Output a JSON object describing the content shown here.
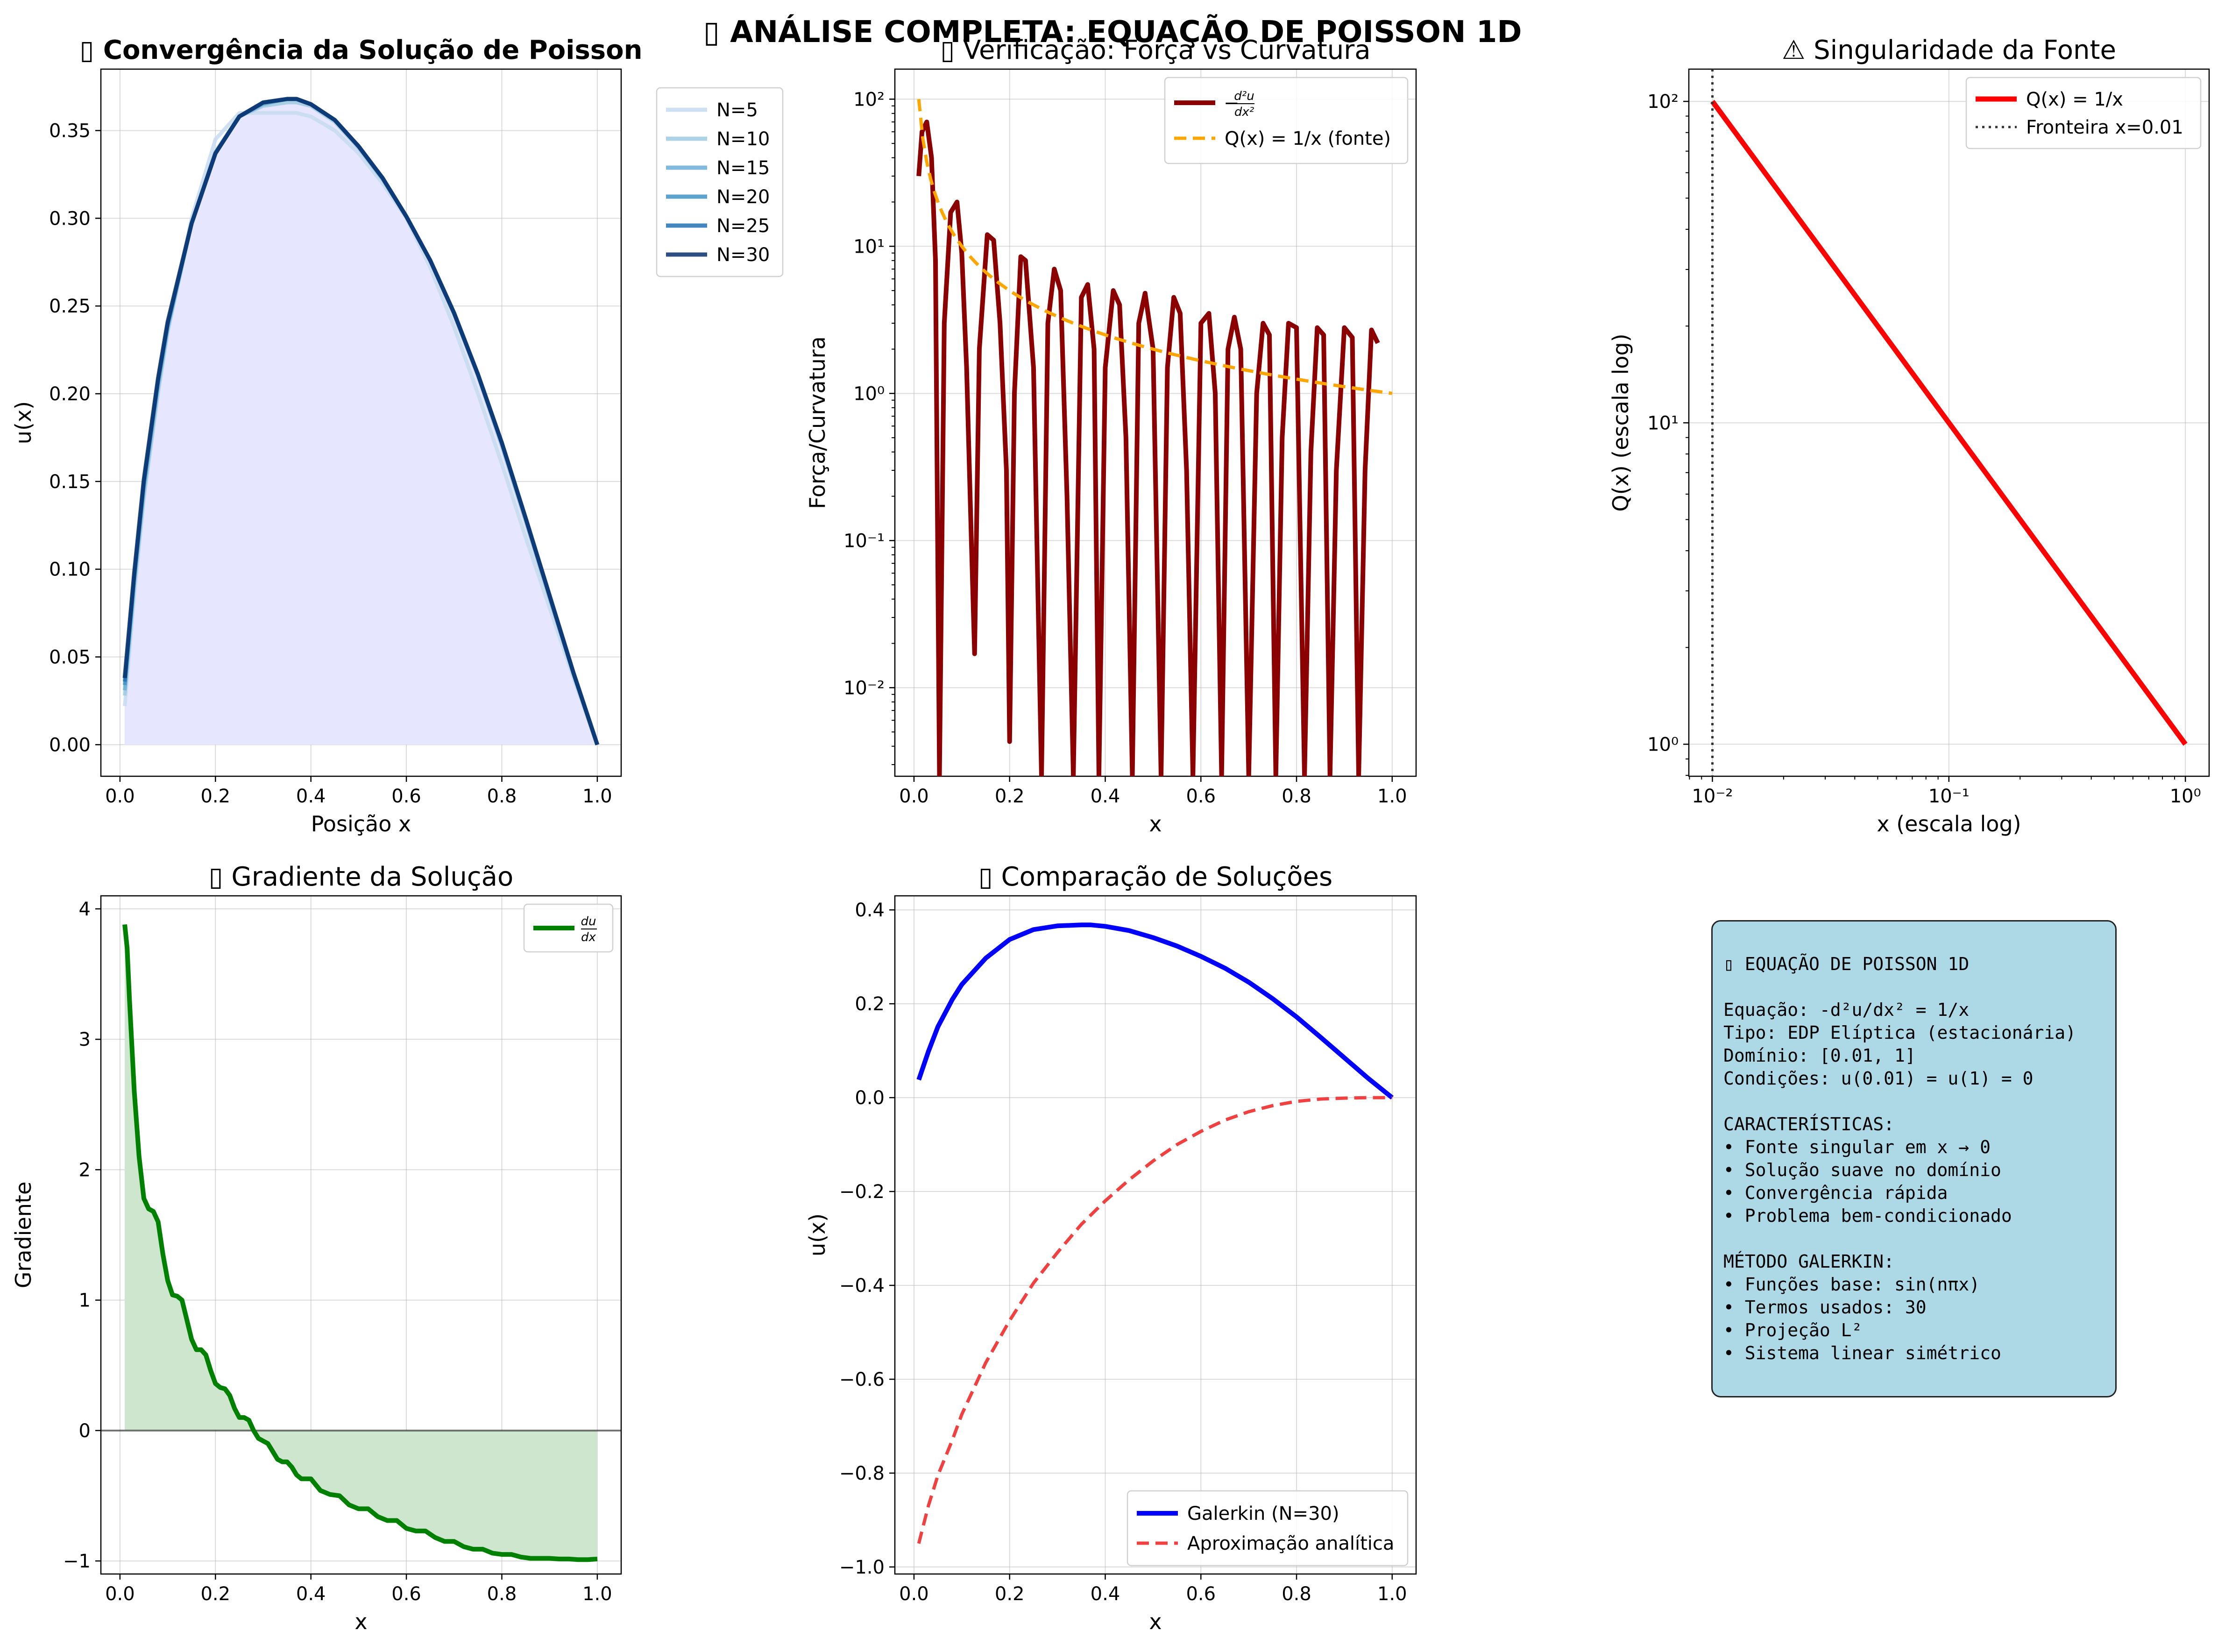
{
  "figure_title": "▯ ANÁLISE COMPLETA: EQUAÇÃO DE POISSON 1D",
  "info_text": "▯ EQUAÇÃO DE POISSON 1D\n\nEquação: -d²u/dx² = 1/x\nTipo: EDP Elíptica (estacionária)\nDomínio: [0.01, 1]\nCondições: u(0.01) = u(1) = 0\n\nCARACTERÍSTICAS:\n• Fonte singular em x → 0\n• Solução suave no domínio\n• Convergência rápida\n• Problema bem-condicionado\n\nMÉTODO GALERKIN:\n• Funções base: sin(nπx)\n• Termos usados: 30\n• Projeção L²\n• Sistema linear simétrico",
  "colors": {
    "blues": [
      "#c6dbef",
      "#9ecae1",
      "#6baed6",
      "#4292c6",
      "#2171b5",
      "#08306b"
    ],
    "fill_blue": "#e6e6ff",
    "dark_red": "#8b0000",
    "orange": "#ffa500",
    "red": "#ff0000",
    "green": "#008000",
    "fill_green": "#cde6cd",
    "galerkin_blue": "#0000ff",
    "analytic_red": "#f04040",
    "info_bg": "#add8e6"
  },
  "chart_data": [
    {
      "type": "line",
      "title": "▯ Convergência da Solução de Poisson",
      "xlabel": "Posição x",
      "ylabel": "u(x)",
      "xlim": [
        -0.04,
        1.05
      ],
      "ylim": [
        -0.018,
        0.385
      ],
      "xticks": [
        0.0,
        0.2,
        0.4,
        0.6,
        0.8,
        1.0
      ],
      "xtick_labels": [
        "0.0",
        "0.2",
        "0.4",
        "0.6",
        "0.8",
        "1.0"
      ],
      "yticks": [
        0.0,
        0.05,
        0.1,
        0.15,
        0.2,
        0.25,
        0.3,
        0.35
      ],
      "ytick_labels": [
        "0.00",
        "0.05",
        "0.10",
        "0.15",
        "0.20",
        "0.25",
        "0.30",
        "0.35"
      ],
      "grid": true,
      "legend": "outside-right",
      "x": [
        0.01,
        0.03,
        0.05,
        0.08,
        0.1,
        0.15,
        0.2,
        0.25,
        0.3,
        0.35,
        0.37,
        0.4,
        0.45,
        0.5,
        0.55,
        0.6,
        0.65,
        0.7,
        0.75,
        0.8,
        0.85,
        0.9,
        0.95,
        1.0
      ],
      "series": [
        {
          "name": "N=5",
          "values": [
            0.022,
            0.085,
            0.14,
            0.2,
            0.235,
            0.3,
            0.345,
            0.36,
            0.36,
            0.36,
            0.36,
            0.358,
            0.35,
            0.337,
            0.32,
            0.3,
            0.272,
            0.238,
            0.2,
            0.16,
            0.118,
            0.078,
            0.038,
            0.0
          ]
        },
        {
          "name": "N=10",
          "values": [
            0.028,
            0.09,
            0.142,
            0.202,
            0.236,
            0.297,
            0.338,
            0.358,
            0.364,
            0.366,
            0.366,
            0.364,
            0.355,
            0.34,
            0.322,
            0.301,
            0.276,
            0.245,
            0.21,
            0.17,
            0.127,
            0.083,
            0.04,
            0.0
          ]
        },
        {
          "name": "N=15",
          "values": [
            0.031,
            0.093,
            0.146,
            0.205,
            0.238,
            0.297,
            0.337,
            0.358,
            0.365,
            0.368,
            0.368,
            0.365,
            0.356,
            0.341,
            0.323,
            0.301,
            0.276,
            0.246,
            0.211,
            0.172,
            0.129,
            0.085,
            0.041,
            0.0
          ]
        },
        {
          "name": "N=20",
          "values": [
            0.034,
            0.095,
            0.148,
            0.207,
            0.239,
            0.297,
            0.337,
            0.358,
            0.366,
            0.368,
            0.368,
            0.365,
            0.356,
            0.341,
            0.323,
            0.301,
            0.276,
            0.246,
            0.211,
            0.172,
            0.129,
            0.085,
            0.041,
            0.0
          ]
        },
        {
          "name": "N=25",
          "values": [
            0.036,
            0.097,
            0.15,
            0.208,
            0.24,
            0.297,
            0.337,
            0.358,
            0.366,
            0.368,
            0.368,
            0.365,
            0.356,
            0.341,
            0.323,
            0.301,
            0.276,
            0.246,
            0.211,
            0.172,
            0.129,
            0.085,
            0.041,
            0.0
          ]
        },
        {
          "name": "N=30",
          "values": [
            0.038,
            0.098,
            0.151,
            0.209,
            0.241,
            0.297,
            0.337,
            0.358,
            0.366,
            0.368,
            0.368,
            0.365,
            0.356,
            0.341,
            0.323,
            0.301,
            0.276,
            0.246,
            0.211,
            0.172,
            0.129,
            0.085,
            0.041,
            0.0
          ]
        }
      ]
    },
    {
      "type": "line",
      "title": "▯ Verificação: Força vs Curvatura",
      "xlabel": "x",
      "ylabel": "Força/Curvatura",
      "yscale": "log",
      "xlim": [
        -0.04,
        1.05
      ],
      "ylim": [
        0.0025,
        160
      ],
      "xticks": [
        0.0,
        0.2,
        0.4,
        0.6,
        0.8,
        1.0
      ],
      "xtick_labels": [
        "0.0",
        "0.2",
        "0.4",
        "0.6",
        "0.8",
        "1.0"
      ],
      "yticks": [
        0.01,
        0.1,
        1,
        10,
        100
      ],
      "ytick_labels": [
        "10⁻²",
        "10⁻¹",
        "10⁰",
        "10¹",
        "10²"
      ],
      "grid": true,
      "legend": "top-right",
      "series": [
        {
          "name": "−d²u/dx²",
          "style": "solid",
          "description": "oscillating |−u''| of the N=30 Galerkin solution",
          "x": [
            0.01,
            0.0167,
            0.0267,
            0.0367,
            0.045,
            0.0533,
            0.0633,
            0.0767,
            0.09,
            0.1,
            0.11,
            0.12,
            0.1267,
            0.1367,
            0.1533,
            0.1667,
            0.18,
            0.1933,
            0.2,
            0.21,
            0.2233,
            0.2333,
            0.25,
            0.2667,
            0.28,
            0.2933,
            0.3067,
            0.32,
            0.3333,
            0.35,
            0.3633,
            0.3767,
            0.3867,
            0.4,
            0.4167,
            0.43,
            0.4433,
            0.4567,
            0.47,
            0.4833,
            0.5,
            0.5167,
            0.53,
            0.5433,
            0.5567,
            0.57,
            0.5833,
            0.6,
            0.6167,
            0.63,
            0.6433,
            0.6567,
            0.67,
            0.6833,
            0.7,
            0.7167,
            0.73,
            0.7433,
            0.7567,
            0.77,
            0.7833,
            0.8,
            0.8167,
            0.83,
            0.8433,
            0.8567,
            0.87,
            0.8833,
            0.9,
            0.9167,
            0.93,
            0.9433,
            0.9567,
            0.97
          ],
          "values": [
            30,
            60,
            70,
            40,
            8,
            0.0025,
            3,
            17,
            20,
            9,
            1.5,
            0.1,
            0.017,
            2,
            12,
            11,
            3,
            0.3,
            0.0043,
            1,
            8.5,
            8,
            1.5,
            0.0025,
            3,
            7,
            5,
            0.2,
            0.0025,
            4.5,
            5.5,
            2,
            0.0025,
            1.5,
            5,
            4,
            0.5,
            0.0025,
            3,
            4.8,
            2,
            0.0025,
            1.5,
            4.5,
            3.5,
            0.3,
            0.0025,
            3,
            3.5,
            1,
            0.0025,
            2,
            3.3,
            2,
            0.0025,
            1,
            3,
            2.5,
            0.0025,
            0.5,
            3,
            2.8,
            0.0025,
            0.4,
            2.8,
            2.5,
            0.0025,
            0.3,
            2.8,
            2.4,
            0.0025,
            0.3,
            2.7,
            2.2
          ]
        },
        {
          "name": "Q(x) = 1/x (fonte)",
          "style": "dashed",
          "formula": "1/x",
          "x_range": [
            0.01,
            1.0
          ]
        }
      ]
    },
    {
      "type": "line",
      "title": "⚠ Singularidade da Fonte",
      "xlabel": "x (escala log)",
      "ylabel": "Q(x) (escala log)",
      "xscale": "log",
      "yscale": "log",
      "xlim": [
        0.00795,
        1.26
      ],
      "ylim": [
        0.795,
        126
      ],
      "xticks": [
        0.01,
        0.1,
        1
      ],
      "xtick_labels": [
        "10⁻²",
        "10⁻¹",
        "10⁰"
      ],
      "yticks": [
        1,
        10,
        100
      ],
      "ytick_labels": [
        "10⁰",
        "10¹",
        "10²"
      ],
      "grid": true,
      "legend": "top-right",
      "series": [
        {
          "name": "Q(x) = 1/x",
          "style": "solid",
          "x": [
            0.01,
            1.0
          ],
          "values": [
            100,
            1
          ]
        },
        {
          "name": "Fronteira x=0.01",
          "style": "dotted",
          "vline": 0.01
        }
      ]
    },
    {
      "type": "area",
      "title": "▯ Gradiente da Solução",
      "xlabel": "x",
      "ylabel": "Gradiente",
      "xlim": [
        -0.04,
        1.05
      ],
      "ylim": [
        -1.1,
        4.1
      ],
      "xticks": [
        0.0,
        0.2,
        0.4,
        0.6,
        0.8,
        1.0
      ],
      "xtick_labels": [
        "0.0",
        "0.2",
        "0.4",
        "0.6",
        "0.8",
        "1.0"
      ],
      "yticks": [
        -1,
        0,
        1,
        2,
        3,
        4
      ],
      "ytick_labels": [
        "−1",
        "0",
        "1",
        "2",
        "3",
        "4"
      ],
      "grid": true,
      "legend": "top-right",
      "series": [
        {
          "name": "du/dx",
          "x": [
            0.01,
            0.015,
            0.02,
            0.03,
            0.04,
            0.05,
            0.06,
            0.07,
            0.08,
            0.09,
            0.1,
            0.11,
            0.12,
            0.13,
            0.14,
            0.15,
            0.16,
            0.17,
            0.18,
            0.19,
            0.2,
            0.21,
            0.22,
            0.23,
            0.24,
            0.25,
            0.26,
            0.27,
            0.28,
            0.29,
            0.3,
            0.31,
            0.32,
            0.33,
            0.34,
            0.35,
            0.36,
            0.37,
            0.38,
            0.4,
            0.42,
            0.44,
            0.46,
            0.48,
            0.5,
            0.52,
            0.54,
            0.56,
            0.58,
            0.6,
            0.62,
            0.64,
            0.66,
            0.68,
            0.7,
            0.72,
            0.74,
            0.76,
            0.78,
            0.8,
            0.82,
            0.84,
            0.86,
            0.88,
            0.9,
            0.92,
            0.94,
            0.96,
            0.98,
            1.0
          ],
          "values": [
            3.88,
            3.7,
            3.3,
            2.6,
            2.1,
            1.78,
            1.7,
            1.68,
            1.6,
            1.35,
            1.15,
            1.04,
            1.03,
            1.0,
            0.85,
            0.7,
            0.62,
            0.62,
            0.58,
            0.46,
            0.36,
            0.33,
            0.32,
            0.27,
            0.17,
            0.1,
            0.1,
            0.08,
            0.0,
            -0.06,
            -0.08,
            -0.1,
            -0.16,
            -0.22,
            -0.24,
            -0.24,
            -0.28,
            -0.34,
            -0.37,
            -0.37,
            -0.46,
            -0.49,
            -0.5,
            -0.57,
            -0.6,
            -0.6,
            -0.66,
            -0.69,
            -0.69,
            -0.75,
            -0.77,
            -0.77,
            -0.82,
            -0.85,
            -0.85,
            -0.89,
            -0.91,
            -0.91,
            -0.94,
            -0.95,
            -0.95,
            -0.97,
            -0.98,
            -0.98,
            -0.98,
            -0.985,
            -0.985,
            -0.99,
            -0.99,
            -0.985
          ]
        }
      ],
      "hline": 0
    },
    {
      "type": "line",
      "title": "▯ Comparação de Soluções",
      "xlabel": "x",
      "ylabel": "u(x)",
      "xlim": [
        -0.04,
        1.05
      ],
      "ylim": [
        -1.015,
        0.43
      ],
      "xticks": [
        0.0,
        0.2,
        0.4,
        0.6,
        0.8,
        1.0
      ],
      "xtick_labels": [
        "0.0",
        "0.2",
        "0.4",
        "0.6",
        "0.8",
        "1.0"
      ],
      "yticks": [
        -1.0,
        -0.8,
        -0.6,
        -0.4,
        -0.2,
        0.0,
        0.2,
        0.4
      ],
      "ytick_labels": [
        "−1.0",
        "−0.8",
        "−0.6",
        "−0.4",
        "−0.2",
        "0.0",
        "0.2",
        "0.4"
      ],
      "grid": true,
      "legend": "bottom-right",
      "series": [
        {
          "name": "Galerkin (N=30)",
          "style": "solid",
          "x": [
            0.01,
            0.03,
            0.05,
            0.08,
            0.1,
            0.15,
            0.2,
            0.25,
            0.3,
            0.35,
            0.37,
            0.4,
            0.45,
            0.5,
            0.55,
            0.6,
            0.65,
            0.7,
            0.75,
            0.8,
            0.85,
            0.9,
            0.95,
            1.0
          ],
          "values": [
            0.038,
            0.098,
            0.151,
            0.209,
            0.241,
            0.297,
            0.337,
            0.358,
            0.366,
            0.368,
            0.368,
            0.365,
            0.356,
            0.341,
            0.323,
            0.301,
            0.276,
            0.246,
            0.211,
            0.172,
            0.129,
            0.085,
            0.041,
            0.0
          ]
        },
        {
          "name": "Aproximação analítica",
          "style": "dashed",
          "x": [
            0.01,
            0.03,
            0.05,
            0.08,
            0.1,
            0.15,
            0.2,
            0.25,
            0.3,
            0.35,
            0.4,
            0.45,
            0.5,
            0.55,
            0.6,
            0.65,
            0.7,
            0.75,
            0.8,
            0.85,
            0.9,
            0.95,
            1.0
          ],
          "values": [
            -0.95,
            -0.87,
            -0.805,
            -0.73,
            -0.675,
            -0.565,
            -0.475,
            -0.395,
            -0.33,
            -0.27,
            -0.22,
            -0.175,
            -0.135,
            -0.1,
            -0.072,
            -0.048,
            -0.03,
            -0.017,
            -0.008,
            -0.003,
            -0.001,
            0.0,
            0.0
          ]
        }
      ]
    }
  ]
}
